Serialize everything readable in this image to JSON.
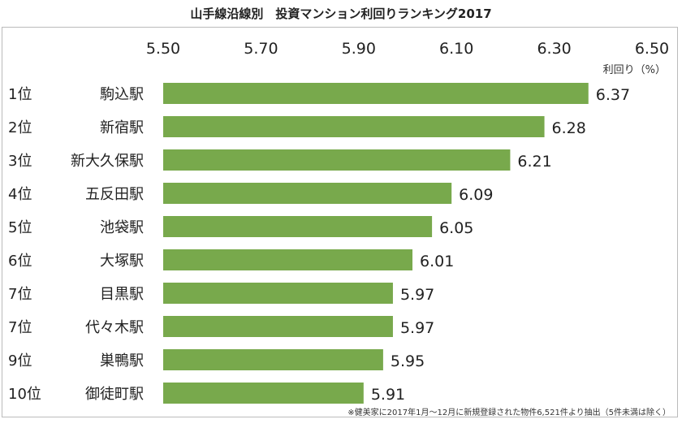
{
  "chart_data": {
    "type": "bar",
    "orientation": "horizontal",
    "title": "山手線沿線別　投資マンション利回りランキング2017",
    "xlabel": "利回り（%）",
    "xlim": [
      5.5,
      6.5
    ],
    "xticks": [
      "5.50",
      "5.70",
      "5.90",
      "6.10",
      "6.30",
      "6.50"
    ],
    "xaxis_position": "top",
    "grid": false,
    "bar_color": "#78a94c",
    "ranks": [
      "1位",
      "2位",
      "3位",
      "4位",
      "5位",
      "6位",
      "7位",
      "7位",
      "9位",
      "10位"
    ],
    "categories": [
      "駒込駅",
      "新宿駅",
      "新大久保駅",
      "五反田駅",
      "池袋駅",
      "大塚駅",
      "目黒駅",
      "代々木駅",
      "巣鴨駅",
      "御徒町駅"
    ],
    "values": [
      6.37,
      6.28,
      6.21,
      6.09,
      6.05,
      6.01,
      5.97,
      5.97,
      5.95,
      5.91
    ],
    "footnote": "※健美家に2017年1月～12月に新規登録された物件6,521件より抽出（5件未満は除く）"
  }
}
